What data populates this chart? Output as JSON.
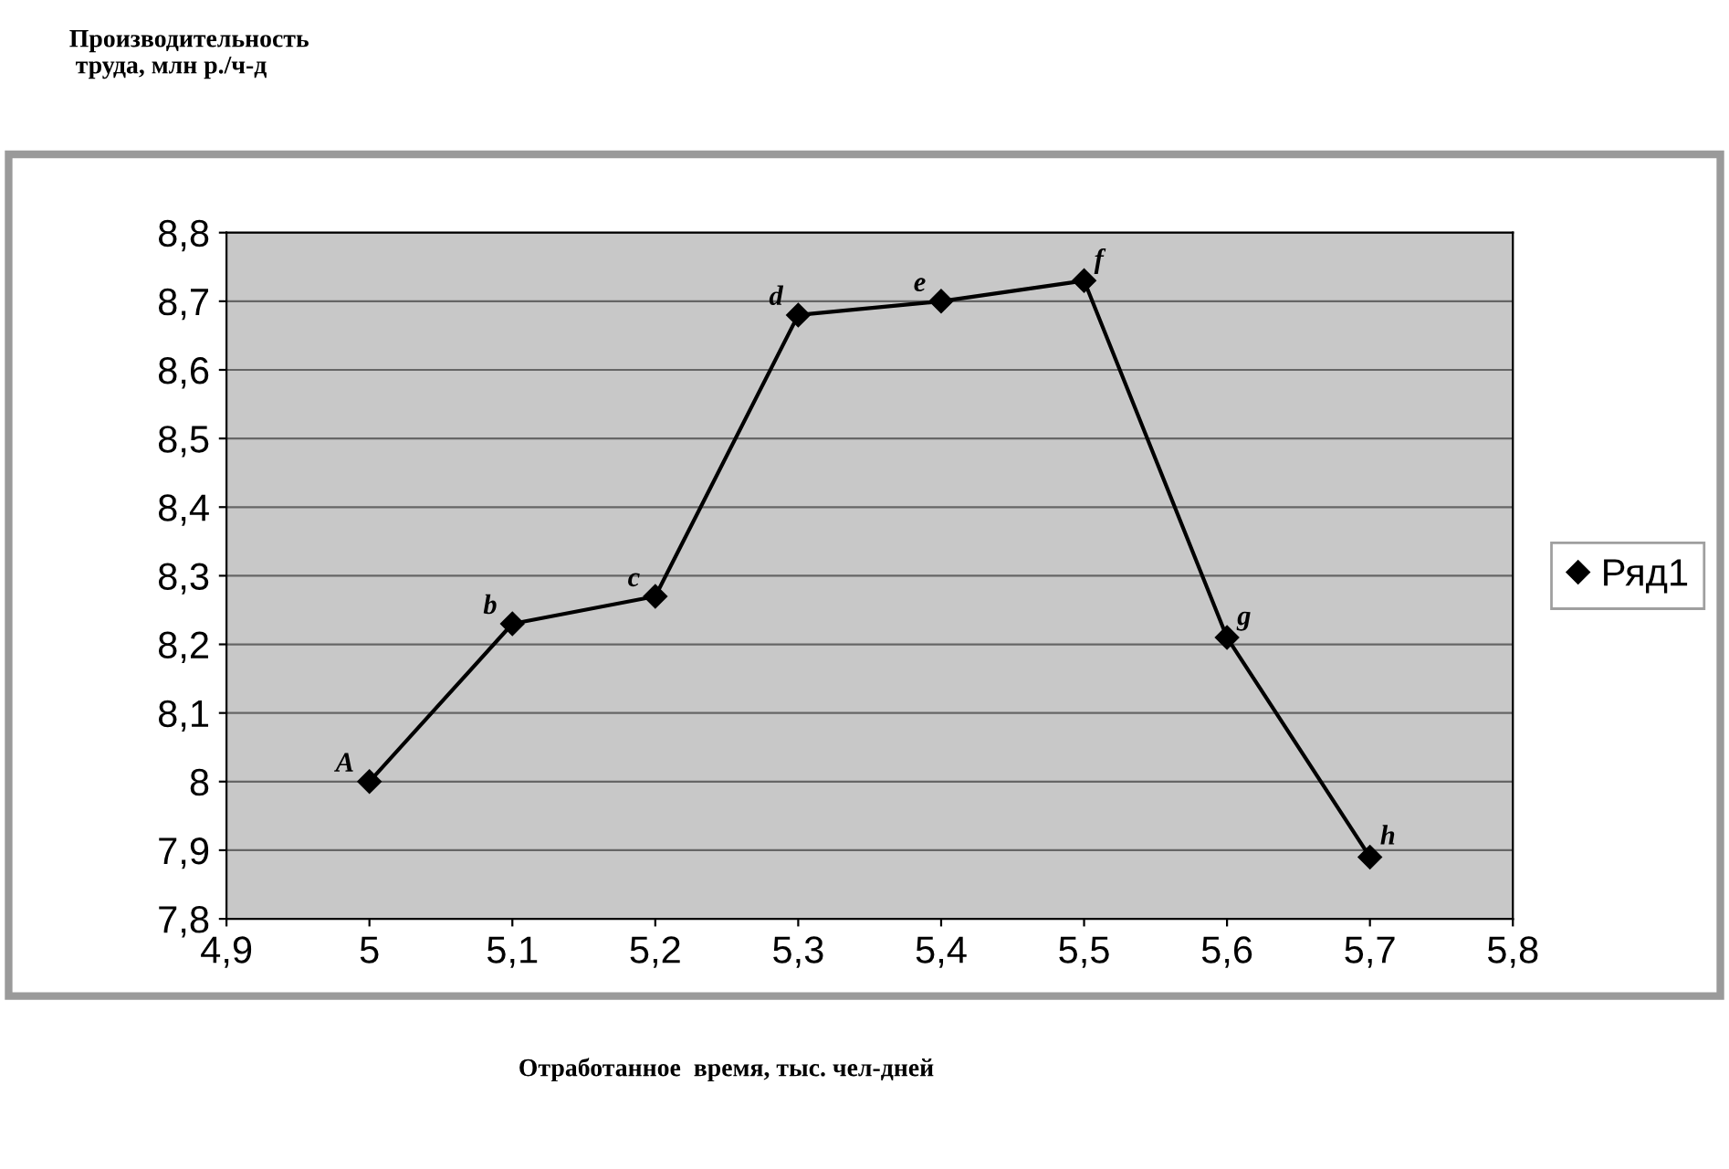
{
  "chart_data": {
    "type": "line",
    "xlabel": "Отработанное  время, тыс. чел-дней",
    "x": [
      5,
      5.1,
      5.2,
      5.3,
      5.4,
      5.5,
      5.6,
      5.7
    ],
    "series": [
      {
        "name": "Ряд1",
        "color": "#000000",
        "values": [
          8.0,
          8.23,
          8.27,
          8.68,
          8.7,
          8.73,
          8.21,
          7.89
        ]
      }
    ],
    "xlim": [
      4.9,
      5.8
    ],
    "xticks": [
      {
        "value": 4.9,
        "label": "4,9"
      },
      {
        "value": 5,
        "label": "5"
      },
      {
        "value": 5.1,
        "label": "5,1"
      },
      {
        "value": 5.2,
        "label": "5,2"
      },
      {
        "value": 5.3,
        "label": "5,3"
      },
      {
        "value": 5.4,
        "label": "5,4"
      },
      {
        "value": 5.5,
        "label": "5,5"
      },
      {
        "value": 5.6,
        "label": "5,6"
      },
      {
        "value": 5.7,
        "label": "5,7"
      },
      {
        "value": 5.8,
        "label": "5,8"
      }
    ],
    "ylim": [
      7.8,
      8.8
    ],
    "yticks": [
      {
        "value": 7.8,
        "label": "7,8"
      },
      {
        "value": 7.9,
        "label": "7,9"
      },
      {
        "value": 8,
        "label": "8"
      },
      {
        "value": 8.1,
        "label": "8,1"
      },
      {
        "value": 8.2,
        "label": "8,2"
      },
      {
        "value": 8.3,
        "label": "8,3"
      },
      {
        "value": 8.4,
        "label": "8,4"
      },
      {
        "value": 8.5,
        "label": "8,5"
      },
      {
        "value": 8.6,
        "label": "8,6"
      },
      {
        "value": 8.7,
        "label": "8,7"
      },
      {
        "value": 8.8,
        "label": "8,8"
      }
    ],
    "annotations": [
      "Производительность\n труда, млн р./ч-д",
      {
        "text": "A",
        "x": 5,
        "y": 8.0
      },
      {
        "text": "b",
        "x": 5.1,
        "y": 8.23
      },
      {
        "text": "c",
        "x": 5.2,
        "y": 8.27
      },
      {
        "text": "d",
        "x": 5.3,
        "y": 8.68
      },
      {
        "text": "e",
        "x": 5.4,
        "y": 8.7
      },
      {
        "text": "f",
        "x": 5.5,
        "y": 8.73
      },
      {
        "text": "g",
        "x": 5.6,
        "y": 8.21
      },
      {
        "text": "h",
        "x": 5.7,
        "y": 7.89
      }
    ],
    "grid": "y",
    "legend": "right",
    "marker": "diamond",
    "line_style": "solid"
  }
}
